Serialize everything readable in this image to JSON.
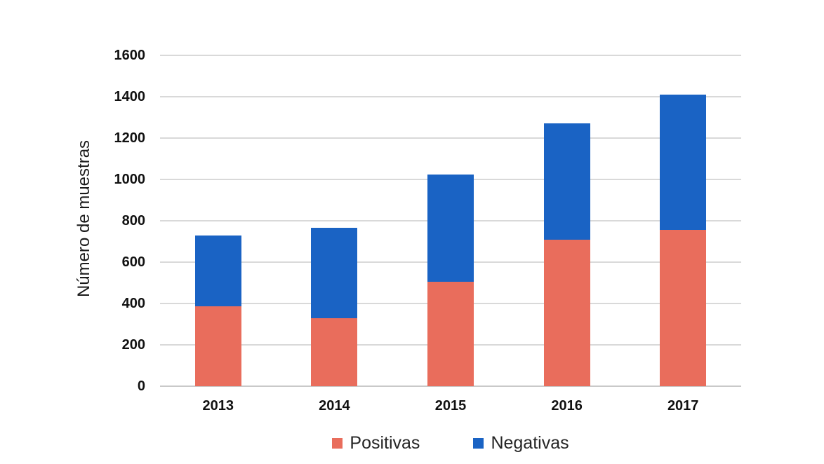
{
  "chart_data": {
    "type": "bar",
    "stacked": true,
    "title": "",
    "xlabel": "",
    "ylabel": "Número de muestras",
    "categories": [
      "2013",
      "2014",
      "2015",
      "2016",
      "2017"
    ],
    "series": [
      {
        "name": "Positivas",
        "color": "#E96D5C",
        "values": [
          385,
          330,
          505,
          710,
          755
        ]
      },
      {
        "name": "Negativas",
        "color": "#1A63C4",
        "values": [
          345,
          435,
          520,
          560,
          655
        ]
      }
    ],
    "stack_totals": [
      730,
      765,
      1025,
      1270,
      1410
    ],
    "ylim": [
      0,
      1600
    ],
    "yticks": [
      0,
      200,
      400,
      600,
      800,
      1000,
      1200,
      1400,
      1600
    ],
    "grid": "horizontal",
    "legend_position": "bottom",
    "gridline_color": "#D9D9D9",
    "axis_text_color": "#111111",
    "background_color": "#FFFFFF"
  }
}
